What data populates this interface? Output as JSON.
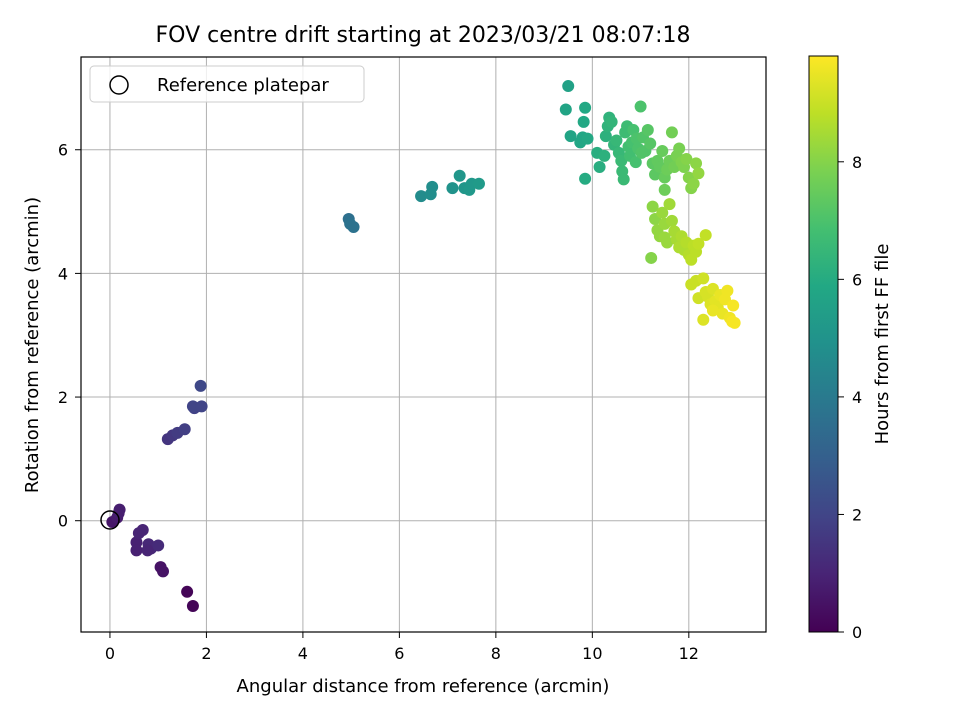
{
  "chart_data": {
    "type": "scatter",
    "title": "FOV centre drift starting at 2023/03/21 08:07:18",
    "xlabel": "Angular distance from reference (arcmin)",
    "ylabel": "Rotation from reference (arcmin)",
    "xlim": [
      -0.6,
      13.6
    ],
    "ylim": [
      -1.8,
      7.5
    ],
    "xticks": [
      0,
      2,
      4,
      6,
      8,
      10,
      12
    ],
    "yticks": [
      0,
      2,
      4,
      6
    ],
    "grid": true,
    "legend": {
      "placement": "top-left",
      "entries": [
        "Reference platepar"
      ]
    },
    "reference_point": {
      "x": 0,
      "y": 0
    },
    "colorbar": {
      "label": "Hours from first FF file",
      "colormap": "viridis",
      "range": [
        0,
        9.8
      ],
      "ticks": [
        0,
        2,
        4,
        6,
        8
      ]
    },
    "points": [
      [
        0.05,
        -0.02,
        0.6
      ],
      [
        0.15,
        0.05,
        0.7
      ],
      [
        0.2,
        0.18,
        0.8
      ],
      [
        0.18,
        0.12,
        0.8
      ],
      [
        0.55,
        -0.35,
        0.9
      ],
      [
        0.6,
        -0.2,
        1.0
      ],
      [
        0.68,
        -0.15,
        1.0
      ],
      [
        0.55,
        -0.48,
        0.9
      ],
      [
        0.8,
        -0.38,
        1.1
      ],
      [
        0.85,
        -0.45,
        1.1
      ],
      [
        1.0,
        -0.4,
        1.2
      ],
      [
        0.78,
        -0.48,
        1.0
      ],
      [
        1.05,
        -0.75,
        0.5
      ],
      [
        1.1,
        -0.82,
        0.5
      ],
      [
        1.6,
        -1.15,
        0.1
      ],
      [
        1.72,
        -1.38,
        0.1
      ],
      [
        1.2,
        1.32,
        1.5
      ],
      [
        1.3,
        1.38,
        1.6
      ],
      [
        1.4,
        1.42,
        1.7
      ],
      [
        1.55,
        1.48,
        1.8
      ],
      [
        1.75,
        1.82,
        1.9
      ],
      [
        1.72,
        1.85,
        2.0
      ],
      [
        1.9,
        1.85,
        2.0
      ],
      [
        1.88,
        2.18,
        2.1
      ],
      [
        4.95,
        4.88,
        3.6
      ],
      [
        4.98,
        4.8,
        3.7
      ],
      [
        5.05,
        4.75,
        3.7
      ],
      [
        6.45,
        5.25,
        4.7
      ],
      [
        6.65,
        5.28,
        4.8
      ],
      [
        6.68,
        5.4,
        4.8
      ],
      [
        7.1,
        5.38,
        5.0
      ],
      [
        7.25,
        5.58,
        5.1
      ],
      [
        7.35,
        5.38,
        5.1
      ],
      [
        7.45,
        5.35,
        5.2
      ],
      [
        7.5,
        5.45,
        5.2
      ],
      [
        7.65,
        5.45,
        5.3
      ],
      [
        9.5,
        7.03,
        5.6
      ],
      [
        9.45,
        6.65,
        5.7
      ],
      [
        9.55,
        6.22,
        5.7
      ],
      [
        9.75,
        6.12,
        5.8
      ],
      [
        9.8,
        6.2,
        5.8
      ],
      [
        9.82,
        6.45,
        5.9
      ],
      [
        9.85,
        6.68,
        5.9
      ],
      [
        9.9,
        6.18,
        5.9
      ],
      [
        9.85,
        5.53,
        6.0
      ],
      [
        10.1,
        5.95,
        6.1
      ],
      [
        10.15,
        5.72,
        6.1
      ],
      [
        10.25,
        5.9,
        6.2
      ],
      [
        10.28,
        6.22,
        6.2
      ],
      [
        10.32,
        6.38,
        6.3
      ],
      [
        10.35,
        6.52,
        6.3
      ],
      [
        10.4,
        6.45,
        6.4
      ],
      [
        10.45,
        6.08,
        6.4
      ],
      [
        10.5,
        6.15,
        6.5
      ],
      [
        10.55,
        5.95,
        6.5
      ],
      [
        10.6,
        5.82,
        6.6
      ],
      [
        10.62,
        5.65,
        6.6
      ],
      [
        10.65,
        5.52,
        6.6
      ],
      [
        10.68,
        6.28,
        6.7
      ],
      [
        10.72,
        6.38,
        6.7
      ],
      [
        10.75,
        6.05,
        6.8
      ],
      [
        10.78,
        5.9,
        6.8
      ],
      [
        10.82,
        6.12,
        6.9
      ],
      [
        10.85,
        6.32,
        6.9
      ],
      [
        10.9,
        5.8,
        6.9
      ],
      [
        10.92,
        6.18,
        7.0
      ],
      [
        10.95,
        6.02,
        7.0
      ],
      [
        11.0,
        6.7,
        7.0
      ],
      [
        11.02,
        5.95,
        7.1
      ],
      [
        11.05,
        6.2,
        7.1
      ],
      [
        11.1,
        5.98,
        7.1
      ],
      [
        11.15,
        6.32,
        7.2
      ],
      [
        11.2,
        6.1,
        7.2
      ],
      [
        11.25,
        5.78,
        7.3
      ],
      [
        11.3,
        5.6,
        7.3
      ],
      [
        11.35,
        5.82,
        7.4
      ],
      [
        11.4,
        5.72,
        7.4
      ],
      [
        11.45,
        5.98,
        7.5
      ],
      [
        11.5,
        5.55,
        7.5
      ],
      [
        11.55,
        5.68,
        7.6
      ],
      [
        11.6,
        5.82,
        7.6
      ],
      [
        11.65,
        6.28,
        7.7
      ],
      [
        11.7,
        5.72,
        7.7
      ],
      [
        11.75,
        5.9,
        7.8
      ],
      [
        11.8,
        6.02,
        7.8
      ],
      [
        11.85,
        5.8,
        7.9
      ],
      [
        11.9,
        5.72,
        7.9
      ],
      [
        11.95,
        5.85,
        8.0
      ],
      [
        12.0,
        5.55,
        8.0
      ],
      [
        12.05,
        5.38,
        8.0
      ],
      [
        12.1,
        5.45,
        8.1
      ],
      [
        12.15,
        5.78,
        8.1
      ],
      [
        12.2,
        5.62,
        8.2
      ],
      [
        11.5,
        5.35,
        7.6
      ],
      [
        11.25,
        5.08,
        8.1
      ],
      [
        11.3,
        4.88,
        8.1
      ],
      [
        11.35,
        4.7,
        8.2
      ],
      [
        11.4,
        4.6,
        8.2
      ],
      [
        11.45,
        4.98,
        8.3
      ],
      [
        11.5,
        4.8,
        8.3
      ],
      [
        11.55,
        4.5,
        8.3
      ],
      [
        11.6,
        5.12,
        8.4
      ],
      [
        11.65,
        4.85,
        8.4
      ],
      [
        11.7,
        4.68,
        8.5
      ],
      [
        11.75,
        4.55,
        8.5
      ],
      [
        11.8,
        4.42,
        8.6
      ],
      [
        11.85,
        4.6,
        8.6
      ],
      [
        11.9,
        4.38,
        8.6
      ],
      [
        11.95,
        4.5,
        8.7
      ],
      [
        12.0,
        4.3,
        8.7
      ],
      [
        12.05,
        4.22,
        8.8
      ],
      [
        12.1,
        4.45,
        8.8
      ],
      [
        12.15,
        4.35,
        8.8
      ],
      [
        12.2,
        4.48,
        8.9
      ],
      [
        11.22,
        4.25,
        8.0
      ],
      [
        11.5,
        4.58,
        8.3
      ],
      [
        12.35,
        4.62,
        8.9
      ],
      [
        12.05,
        3.82,
        9.0
      ],
      [
        12.15,
        3.88,
        9.0
      ],
      [
        12.2,
        3.6,
        9.1
      ],
      [
        12.3,
        3.92,
        9.1
      ],
      [
        12.35,
        3.7,
        9.2
      ],
      [
        12.4,
        3.62,
        9.2
      ],
      [
        12.45,
        3.5,
        9.3
      ],
      [
        12.5,
        3.75,
        9.3
      ],
      [
        12.55,
        3.55,
        9.4
      ],
      [
        12.6,
        3.45,
        9.4
      ],
      [
        12.65,
        3.65,
        9.5
      ],
      [
        12.7,
        3.35,
        9.5
      ],
      [
        12.75,
        3.58,
        9.6
      ],
      [
        12.8,
        3.72,
        9.6
      ],
      [
        12.85,
        3.28,
        9.6
      ],
      [
        12.9,
        3.22,
        9.7
      ],
      [
        12.95,
        3.2,
        9.7
      ],
      [
        12.92,
        3.48,
        9.7
      ],
      [
        12.3,
        3.25,
        9.3
      ],
      [
        12.5,
        3.4,
        9.5
      ]
    ]
  }
}
